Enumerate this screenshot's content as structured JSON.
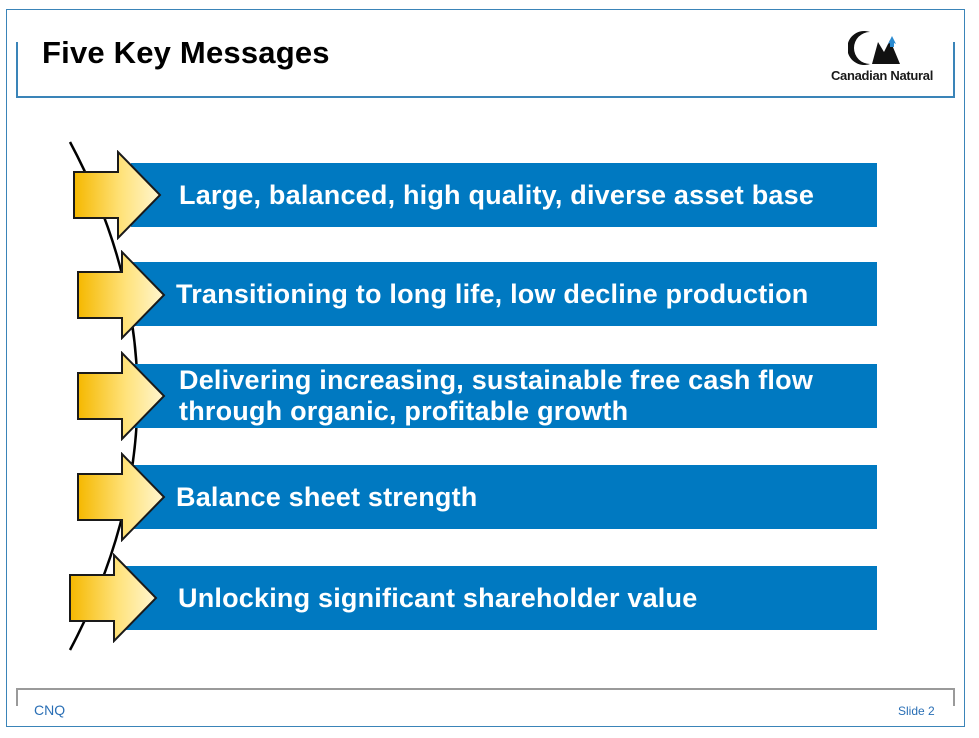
{
  "title": "Five Key Messages",
  "logo": {
    "text": "Canadian Natural"
  },
  "messages": [
    {
      "text": "Large, balanced, high quality, diverse asset base"
    },
    {
      "text": "Transitioning to long life, low decline production"
    },
    {
      "text": "Delivering increasing, sustainable free cash flow through organic, profitable growth"
    },
    {
      "text": "Balance sheet strength"
    },
    {
      "text": "Unlocking significant shareholder value"
    }
  ],
  "footer": {
    "left": "CNQ",
    "right": "Slide 2"
  },
  "colors": {
    "bar": "#0079c1",
    "accent_border": "#3a84b8",
    "arrow_light": "#fff3b0",
    "arrow_dark": "#f5b800",
    "footer_text": "#2a6fb5"
  }
}
